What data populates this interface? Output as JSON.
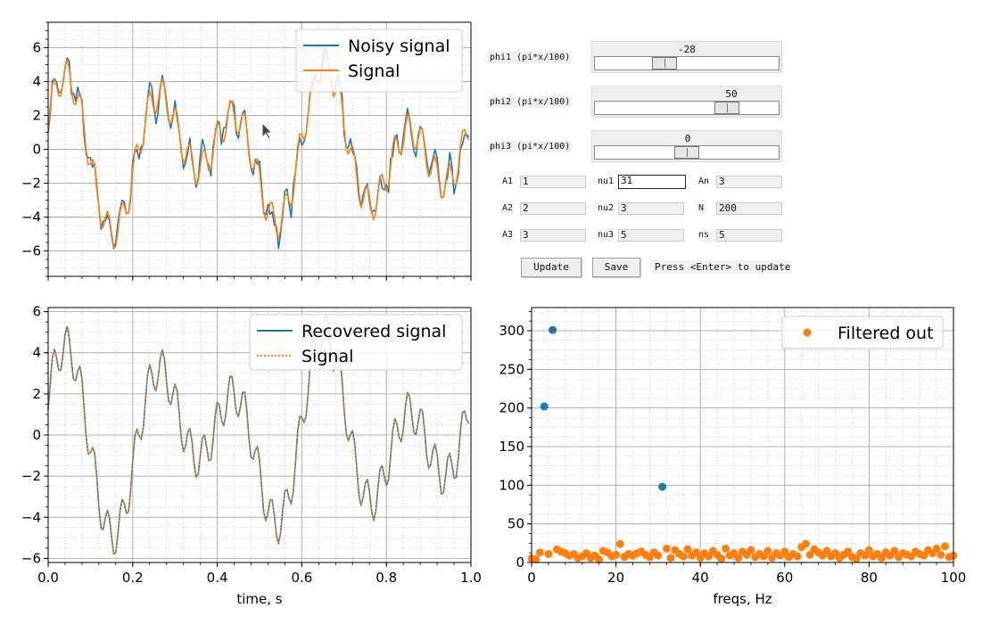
{
  "chart_data": [
    {
      "type": "line",
      "xlim": [
        0,
        1
      ],
      "ylim": [
        -7.5,
        7.5
      ],
      "yticks": [
        -6,
        -4,
        -2,
        0,
        2,
        4,
        6
      ],
      "ytick_labels": [
        "−6",
        "−4",
        "−2",
        "0",
        "2",
        "4",
        "6"
      ],
      "grid": true,
      "legend_position": "top-right",
      "signal_params": {
        "A": [
          1,
          2,
          3
        ],
        "nu": [
          31,
          3,
          5
        ],
        "phi_pi_over_100": [
          -28,
          50,
          0
        ],
        "noise_amplitude": 3,
        "N": 200
      },
      "series": [
        {
          "name": "Noisy signal",
          "color": "#1f77b4",
          "style": "solid"
        },
        {
          "name": "Signal",
          "color": "#ff7f0e",
          "style": "solid"
        }
      ]
    },
    {
      "type": "line",
      "xlim": [
        0,
        1
      ],
      "ylim": [
        -6.2,
        6.2
      ],
      "xticks": [
        0,
        0.2,
        0.4,
        0.6,
        0.8,
        1.0
      ],
      "xtick_labels": [
        "0.0",
        "0.2",
        "0.4",
        "0.6",
        "0.8",
        "1.0"
      ],
      "yticks": [
        -6,
        -4,
        -2,
        0,
        2,
        4,
        6
      ],
      "ytick_labels": [
        "−6",
        "−4",
        "−2",
        "0",
        "2",
        "4",
        "6"
      ],
      "xlabel": "time, s",
      "grid": true,
      "legend_position": "top-right",
      "series": [
        {
          "name": "Recovered signal",
          "color": "#1f77b4",
          "style": "solid"
        },
        {
          "name": "Signal",
          "color": "#ff7f0e",
          "style": "dotted"
        }
      ]
    },
    {
      "type": "scatter",
      "xlim": [
        0,
        100
      ],
      "ylim": [
        0,
        330
      ],
      "xticks": [
        0,
        20,
        40,
        60,
        80,
        100
      ],
      "xtick_labels": [
        "0",
        "20",
        "40",
        "60",
        "80",
        "100"
      ],
      "yticks": [
        0,
        50,
        100,
        150,
        200,
        250,
        300
      ],
      "ytick_labels": [
        "0",
        "50",
        "100",
        "150",
        "200",
        "250",
        "300"
      ],
      "xlabel": "freqs, Hz",
      "grid": true,
      "legend_position": "top-right",
      "series": [
        {
          "name": "",
          "color": "#1f77b4",
          "points": [
            [
              3,
              202
            ],
            [
              5,
              301
            ],
            [
              31,
              98
            ]
          ]
        },
        {
          "name": "Filtered out",
          "color": "#ff7f0e",
          "points": [
            [
              0,
              5
            ],
            [
              1,
              4
            ],
            [
              2,
              13
            ],
            [
              4,
              11
            ],
            [
              6,
              17
            ],
            [
              7,
              14
            ],
            [
              8,
              12
            ],
            [
              9,
              9
            ],
            [
              10,
              11
            ],
            [
              11,
              6
            ],
            [
              12,
              8
            ],
            [
              13,
              12
            ],
            [
              14,
              6
            ],
            [
              15,
              9
            ],
            [
              16,
              4
            ],
            [
              17,
              15
            ],
            [
              18,
              13
            ],
            [
              19,
              8
            ],
            [
              20,
              10
            ],
            [
              21,
              24
            ],
            [
              22,
              7
            ],
            [
              23,
              11
            ],
            [
              24,
              9
            ],
            [
              25,
              12
            ],
            [
              26,
              14
            ],
            [
              27,
              10
            ],
            [
              28,
              7
            ],
            [
              29,
              13
            ],
            [
              30,
              9
            ],
            [
              32,
              18
            ],
            [
              33,
              6
            ],
            [
              34,
              16
            ],
            [
              35,
              11
            ],
            [
              36,
              8
            ],
            [
              37,
              17
            ],
            [
              38,
              9
            ],
            [
              39,
              13
            ],
            [
              40,
              6
            ],
            [
              41,
              12
            ],
            [
              42,
              8
            ],
            [
              43,
              15
            ],
            [
              44,
              10
            ],
            [
              45,
              5
            ],
            [
              46,
              18
            ],
            [
              47,
              9
            ],
            [
              48,
              12
            ],
            [
              49,
              6
            ],
            [
              50,
              14
            ],
            [
              51,
              10
            ],
            [
              52,
              16
            ],
            [
              53,
              7
            ],
            [
              54,
              11
            ],
            [
              55,
              8
            ],
            [
              56,
              15
            ],
            [
              57,
              6
            ],
            [
              58,
              12
            ],
            [
              59,
              9
            ],
            [
              60,
              14
            ],
            [
              61,
              7
            ],
            [
              62,
              11
            ],
            [
              63,
              8
            ],
            [
              64,
              20
            ],
            [
              65,
              24
            ],
            [
              66,
              10
            ],
            [
              67,
              17
            ],
            [
              68,
              13
            ],
            [
              69,
              9
            ],
            [
              70,
              15
            ],
            [
              71,
              8
            ],
            [
              72,
              12
            ],
            [
              73,
              6
            ],
            [
              74,
              10
            ],
            [
              75,
              14
            ],
            [
              76,
              7
            ],
            [
              77,
              5
            ],
            [
              78,
              12
            ],
            [
              79,
              9
            ],
            [
              80,
              16
            ],
            [
              81,
              8
            ],
            [
              82,
              11
            ],
            [
              83,
              6
            ],
            [
              84,
              13
            ],
            [
              85,
              9
            ],
            [
              86,
              15
            ],
            [
              87,
              7
            ],
            [
              88,
              12
            ],
            [
              89,
              10
            ],
            [
              90,
              8
            ],
            [
              91,
              14
            ],
            [
              92,
              11
            ],
            [
              93,
              9
            ],
            [
              94,
              16
            ],
            [
              95,
              12
            ],
            [
              96,
              18
            ],
            [
              97,
              10
            ],
            [
              98,
              21
            ],
            [
              99,
              7
            ],
            [
              100,
              9
            ]
          ]
        }
      ]
    }
  ],
  "controls": {
    "sliders": [
      {
        "label": "phi1 (pi*x/100)",
        "value": "-28",
        "val": -28,
        "min": -100,
        "max": 100
      },
      {
        "label": "phi2 (pi*x/100)",
        "value": "50",
        "val": 50,
        "min": -100,
        "max": 100
      },
      {
        "label": "phi3 (pi*x/100)",
        "value": "0",
        "val": 0,
        "min": -100,
        "max": 100
      }
    ],
    "fields": {
      "A1": {
        "label": "A1",
        "value": "1"
      },
      "nu1": {
        "label": "nu1",
        "value": "31"
      },
      "An": {
        "label": "An",
        "value": "3"
      },
      "A2": {
        "label": "A2",
        "value": "2"
      },
      "nu2": {
        "label": "nu2",
        "value": "3"
      },
      "N": {
        "label": "N",
        "value": "200"
      },
      "A3": {
        "label": "A3",
        "value": "3"
      },
      "nu3": {
        "label": "nu3",
        "value": "5"
      },
      "ns": {
        "label": "ns",
        "value": "5"
      }
    },
    "update_label": "Update",
    "save_label": "Save",
    "hint": "Press <Enter> to update"
  },
  "icons": {
    "cursor": "arrow-cursor-icon"
  }
}
